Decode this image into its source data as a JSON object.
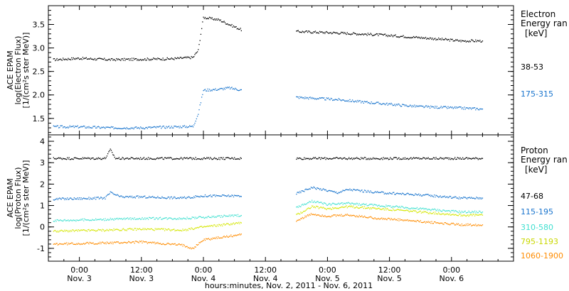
{
  "figure": {
    "xlabel": "hours:minutes, Nov. 2, 2011 - Nov. 6, 2011",
    "xticks": [
      {
        "time": "0:00",
        "day": "Nov. 3"
      },
      {
        "time": "12:00",
        "day": "Nov. 3"
      },
      {
        "time": "0:00",
        "day": "Nov. 4"
      },
      {
        "time": "12:00",
        "day": "Nov. 4"
      },
      {
        "time": "0:00",
        "day": "Nov. 5"
      },
      {
        "time": "12:00",
        "day": "Nov. 5"
      },
      {
        "time": "0:00",
        "day": "Nov. 6"
      }
    ]
  },
  "chart_data": [
    {
      "type": "scatter",
      "panel": "electron",
      "ylabel_lines": [
        "ACE EPAM",
        "log(Electron Flux)",
        "[1/(cm²s ster MeV)]"
      ],
      "ylim": [
        1.15,
        3.9
      ],
      "yticks": [
        "1.5",
        "2.0",
        "2.5",
        "3.0",
        "3.5"
      ],
      "legend_title": [
        "Electron",
        "Energy ran",
        "[keV]"
      ],
      "x_unit": "hours since Nov. 3 0:00",
      "xlim": [
        -6,
        84
      ],
      "data_gap_hours": [
        31.5,
        42
      ],
      "series": [
        {
          "name": "38-53",
          "color": "#000000",
          "points": [
            [
              -5,
              2.75
            ],
            [
              0,
              2.78
            ],
            [
              6,
              2.75
            ],
            [
              12,
              2.76
            ],
            [
              18,
              2.77
            ],
            [
              22,
              2.8
            ],
            [
              23,
              2.95
            ],
            [
              24,
              3.65
            ],
            [
              27,
              3.6
            ],
            [
              29,
              3.5
            ],
            [
              31.5,
              3.38
            ],
            [
              42,
              3.35
            ],
            [
              50,
              3.32
            ],
            [
              58,
              3.28
            ],
            [
              66,
              3.22
            ],
            [
              74,
              3.15
            ],
            [
              78,
              3.15
            ]
          ]
        },
        {
          "name": "175-315",
          "color": "#1874cd",
          "points": [
            [
              -5,
              1.32
            ],
            [
              0,
              1.32
            ],
            [
              6,
              1.3
            ],
            [
              12,
              1.3
            ],
            [
              18,
              1.32
            ],
            [
              22,
              1.33
            ],
            [
              23,
              1.6
            ],
            [
              24,
              2.1
            ],
            [
              27,
              2.12
            ],
            [
              29,
              2.15
            ],
            [
              31.5,
              2.1
            ],
            [
              42,
              1.95
            ],
            [
              50,
              1.9
            ],
            [
              58,
              1.82
            ],
            [
              66,
              1.75
            ],
            [
              74,
              1.72
            ],
            [
              78,
              1.7
            ]
          ]
        }
      ]
    },
    {
      "type": "scatter",
      "panel": "proton",
      "ylabel_lines": [
        "ACE EPAM",
        "log(Proton Flux)",
        "[1/(cm²s ster MeV)]"
      ],
      "ylim": [
        -1.6,
        4.3
      ],
      "yticks": [
        "-1",
        "0",
        "1",
        "2",
        "3",
        "4"
      ],
      "legend_title": [
        "Proton",
        "Energy ran",
        "[keV]"
      ],
      "x_unit": "hours since Nov. 3 0:00",
      "xlim": [
        -6,
        84
      ],
      "data_gap_hours": [
        31.5,
        42
      ],
      "series": [
        {
          "name": "47-68",
          "color": "#000000",
          "points": [
            [
              -5,
              3.2
            ],
            [
              5,
              3.2
            ],
            [
              6,
              3.6
            ],
            [
              7,
              3.2
            ],
            [
              12,
              3.2
            ],
            [
              24,
              3.2
            ],
            [
              31.5,
              3.2
            ],
            [
              42,
              3.2
            ],
            [
              60,
              3.2
            ],
            [
              78,
              3.2
            ]
          ]
        },
        {
          "name": "115-195",
          "color": "#1874cd",
          "points": [
            [
              -5,
              1.3
            ],
            [
              5,
              1.35
            ],
            [
              6,
              1.6
            ],
            [
              8,
              1.4
            ],
            [
              12,
              1.4
            ],
            [
              20,
              1.35
            ],
            [
              24,
              1.45
            ],
            [
              31.5,
              1.45
            ],
            [
              42,
              1.55
            ],
            [
              45,
              1.85
            ],
            [
              48,
              1.7
            ],
            [
              50,
              1.6
            ],
            [
              52,
              1.75
            ],
            [
              58,
              1.6
            ],
            [
              66,
              1.5
            ],
            [
              74,
              1.35
            ],
            [
              78,
              1.35
            ]
          ]
        },
        {
          "name": "310-580",
          "color": "#40e0d0",
          "points": [
            [
              -5,
              0.3
            ],
            [
              5,
              0.35
            ],
            [
              12,
              0.4
            ],
            [
              20,
              0.4
            ],
            [
              24,
              0.45
            ],
            [
              31.5,
              0.55
            ],
            [
              42,
              0.9
            ],
            [
              45,
              1.2
            ],
            [
              48,
              1.05
            ],
            [
              52,
              1.1
            ],
            [
              58,
              1.0
            ],
            [
              66,
              0.85
            ],
            [
              74,
              0.7
            ],
            [
              78,
              0.7
            ]
          ]
        },
        {
          "name": "795-1193",
          "color": "#d4e600",
          "points": [
            [
              -5,
              -0.2
            ],
            [
              5,
              -0.15
            ],
            [
              12,
              -0.1
            ],
            [
              20,
              -0.15
            ],
            [
              24,
              0.0
            ],
            [
              31.5,
              0.2
            ],
            [
              42,
              0.55
            ],
            [
              45,
              0.95
            ],
            [
              48,
              0.85
            ],
            [
              52,
              0.95
            ],
            [
              58,
              0.85
            ],
            [
              66,
              0.7
            ],
            [
              74,
              0.55
            ],
            [
              78,
              0.55
            ]
          ]
        },
        {
          "name": "1060-1900",
          "color": "#ff8c00",
          "points": [
            [
              -5,
              -0.8
            ],
            [
              5,
              -0.75
            ],
            [
              12,
              -0.7
            ],
            [
              20,
              -0.85
            ],
            [
              22,
              -1.0
            ],
            [
              24,
              -0.6
            ],
            [
              31.5,
              -0.35
            ],
            [
              42,
              0.3
            ],
            [
              45,
              0.6
            ],
            [
              48,
              0.5
            ],
            [
              52,
              0.55
            ],
            [
              58,
              0.4
            ],
            [
              66,
              0.25
            ],
            [
              74,
              0.1
            ],
            [
              78,
              0.1
            ]
          ]
        }
      ]
    }
  ]
}
